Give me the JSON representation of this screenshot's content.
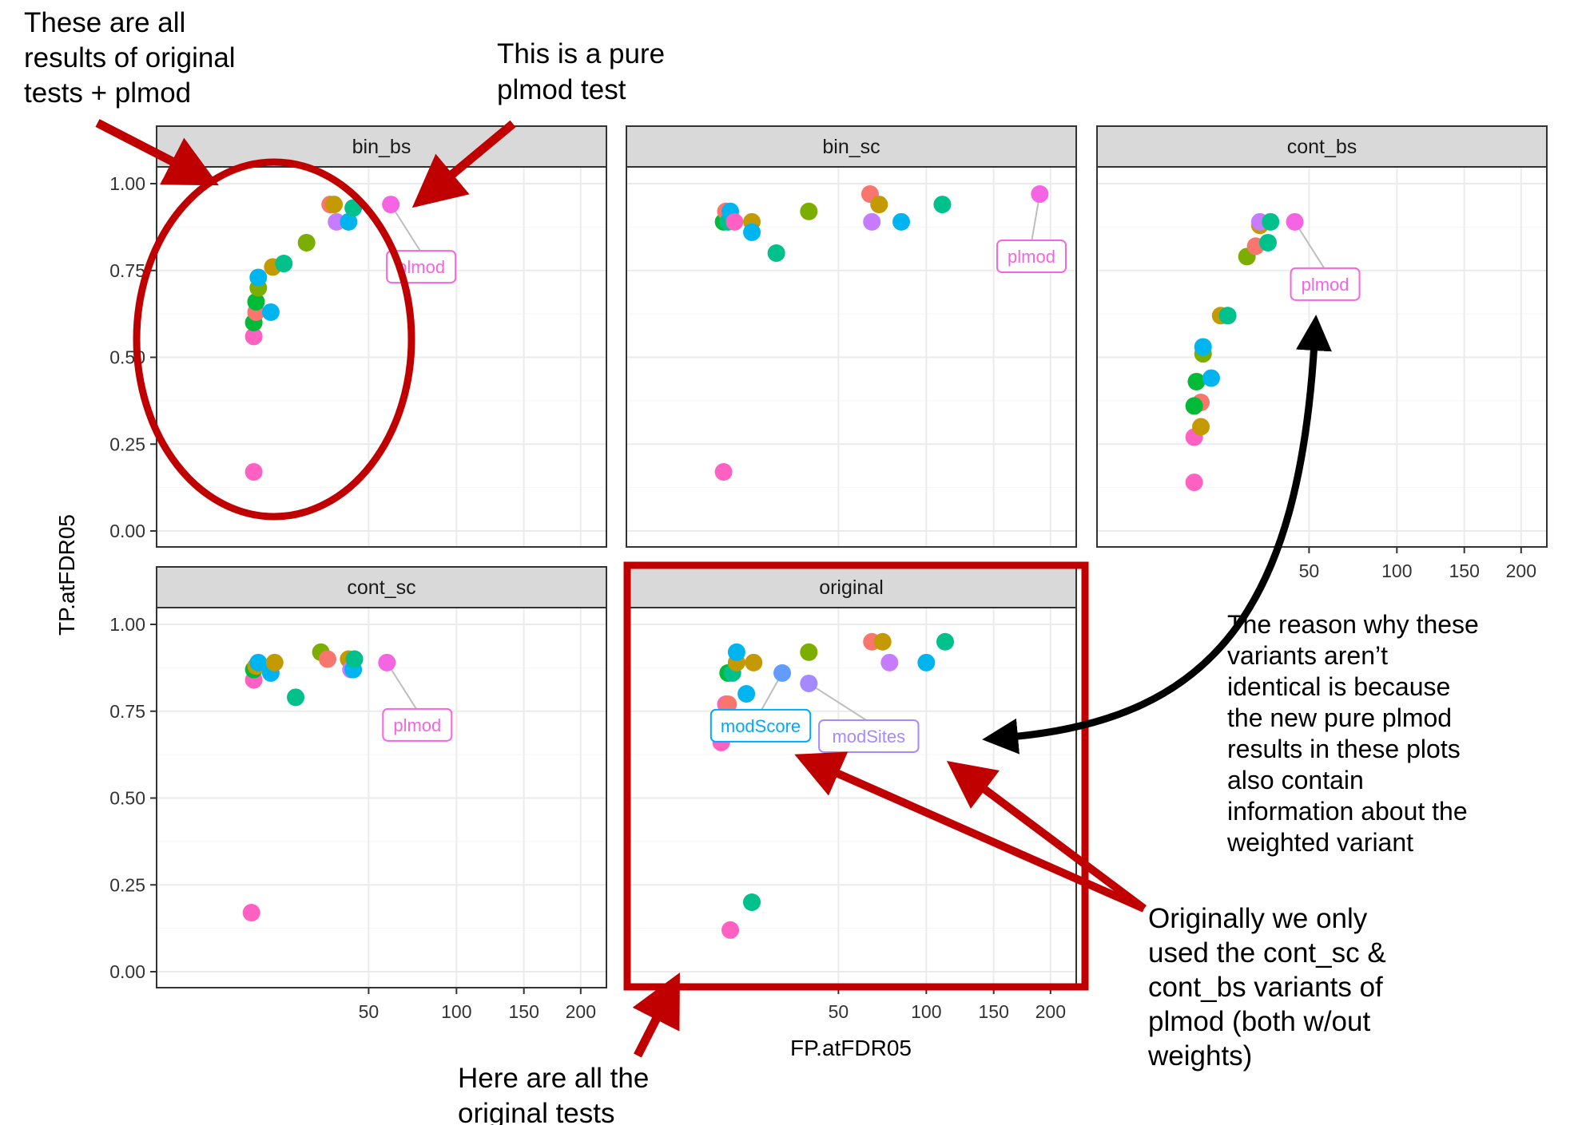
{
  "chart_data": {
    "type": "scatter",
    "xlabel": "FP.atFDR05",
    "ylabel": "TP.atFDR05",
    "x_ticks": [
      "50",
      "100",
      "150",
      "200"
    ],
    "y_ticks": [
      "0.00",
      "0.25",
      "0.50",
      "0.75",
      "1.00"
    ],
    "ylim": [
      0,
      1
    ],
    "colors": {
      "c_pink": "#ff61c3",
      "c_salmon": "#f8766d",
      "c_gold": "#c49a00",
      "c_olive": "#7cae00",
      "c_green": "#00ba38",
      "c_teal": "#00c08b",
      "c_cyan": "#00b4ef",
      "c_lightblue": "#619cff",
      "c_violet": "#c77cff",
      "c_lavender": "#a58aff",
      "c_pinklabel": "#f564e3",
      "c_bluelabel": "#00a9ff"
    },
    "panels": [
      {
        "name": "bin_bs",
        "points": [
          {
            "x": 10.5,
            "y": 0.17,
            "c": "c_pink"
          },
          {
            "x": 10.5,
            "y": 0.56,
            "c": "c_pink"
          },
          {
            "x": 10.5,
            "y": 0.6,
            "c": "c_green"
          },
          {
            "x": 11,
            "y": 0.63,
            "c": "c_salmon"
          },
          {
            "x": 11,
            "y": 0.66,
            "c": "c_green"
          },
          {
            "x": 11.5,
            "y": 0.7,
            "c": "c_olive"
          },
          {
            "x": 11.5,
            "y": 0.73,
            "c": "c_cyan"
          },
          {
            "x": 14.5,
            "y": 0.63,
            "c": "c_cyan"
          },
          {
            "x": 15,
            "y": 0.76,
            "c": "c_gold"
          },
          {
            "x": 18,
            "y": 0.77,
            "c": "c_teal"
          },
          {
            "x": 25,
            "y": 0.83,
            "c": "c_olive"
          },
          {
            "x": 33.5,
            "y": 0.94,
            "c": "c_salmon"
          },
          {
            "x": 35,
            "y": 0.94,
            "c": "c_gold"
          },
          {
            "x": 36,
            "y": 0.89,
            "c": "c_violet"
          },
          {
            "x": 41,
            "y": 0.89,
            "c": "c_cyan"
          },
          {
            "x": 43,
            "y": 0.93,
            "c": "c_teal"
          },
          {
            "x": 61,
            "y": 0.94,
            "c": "c_pinklabel"
          }
        ],
        "labels": [
          {
            "text": "plmod",
            "x": 61,
            "y": 0.94,
            "c": "c_pinklabel"
          }
        ]
      },
      {
        "name": "bin_sc",
        "points": [
          {
            "x": 10.5,
            "y": 0.17,
            "c": "c_pink"
          },
          {
            "x": 10.5,
            "y": 0.89,
            "c": "c_green"
          },
          {
            "x": 11,
            "y": 0.92,
            "c": "c_salmon"
          },
          {
            "x": 11.5,
            "y": 0.89,
            "c": "c_teal"
          },
          {
            "x": 12,
            "y": 0.92,
            "c": "c_cyan"
          },
          {
            "x": 13,
            "y": 0.89,
            "c": "c_pink"
          },
          {
            "x": 17.5,
            "y": 0.89,
            "c": "c_gold"
          },
          {
            "x": 17.5,
            "y": 0.86,
            "c": "c_cyan"
          },
          {
            "x": 25,
            "y": 0.8,
            "c": "c_teal"
          },
          {
            "x": 37,
            "y": 0.92,
            "c": "c_olive"
          },
          {
            "x": 66,
            "y": 0.97,
            "c": "c_salmon"
          },
          {
            "x": 71,
            "y": 0.94,
            "c": "c_gold"
          },
          {
            "x": 67,
            "y": 0.89,
            "c": "c_violet"
          },
          {
            "x": 84,
            "y": 0.89,
            "c": "c_cyan"
          },
          {
            "x": 111,
            "y": 0.94,
            "c": "c_teal"
          },
          {
            "x": 190,
            "y": 0.97,
            "c": "c_pinklabel"
          }
        ],
        "labels": [
          {
            "text": "plmod",
            "x": 190,
            "y": 0.97,
            "c": "c_pinklabel"
          }
        ]
      },
      {
        "name": "cont_bs",
        "points": [
          {
            "x": 10.5,
            "y": 0.14,
            "c": "c_pink"
          },
          {
            "x": 10.5,
            "y": 0.27,
            "c": "c_pink"
          },
          {
            "x": 12,
            "y": 0.3,
            "c": "c_gold"
          },
          {
            "x": 12,
            "y": 0.37,
            "c": "c_salmon"
          },
          {
            "x": 10.5,
            "y": 0.36,
            "c": "c_green"
          },
          {
            "x": 11,
            "y": 0.43,
            "c": "c_green"
          },
          {
            "x": 12.5,
            "y": 0.51,
            "c": "c_olive"
          },
          {
            "x": 12.5,
            "y": 0.53,
            "c": "c_cyan"
          },
          {
            "x": 14.5,
            "y": 0.44,
            "c": "c_cyan"
          },
          {
            "x": 17,
            "y": 0.62,
            "c": "c_gold"
          },
          {
            "x": 19,
            "y": 0.62,
            "c": "c_teal"
          },
          {
            "x": 25,
            "y": 0.79,
            "c": "c_olive"
          },
          {
            "x": 28,
            "y": 0.82,
            "c": "c_salmon"
          },
          {
            "x": 29.5,
            "y": 0.88,
            "c": "c_gold"
          },
          {
            "x": 29.5,
            "y": 0.89,
            "c": "c_violet"
          },
          {
            "x": 32.5,
            "y": 0.83,
            "c": "c_teal"
          },
          {
            "x": 33.5,
            "y": 0.89,
            "c": "c_teal"
          },
          {
            "x": 43.5,
            "y": 0.89,
            "c": "c_pinklabel"
          }
        ],
        "labels": [
          {
            "text": "plmod",
            "x": 43.5,
            "y": 0.89,
            "c": "c_pinklabel"
          }
        ]
      },
      {
        "name": "cont_sc",
        "points": [
          {
            "x": 10,
            "y": 0.17,
            "c": "c_pink"
          },
          {
            "x": 10.5,
            "y": 0.84,
            "c": "c_pink"
          },
          {
            "x": 10.5,
            "y": 0.87,
            "c": "c_green"
          },
          {
            "x": 11,
            "y": 0.88,
            "c": "c_gold"
          },
          {
            "x": 11.5,
            "y": 0.89,
            "c": "c_cyan"
          },
          {
            "x": 14.5,
            "y": 0.86,
            "c": "c_cyan"
          },
          {
            "x": 15.5,
            "y": 0.89,
            "c": "c_gold"
          },
          {
            "x": 21.5,
            "y": 0.79,
            "c": "c_teal"
          },
          {
            "x": 30,
            "y": 0.92,
            "c": "c_olive"
          },
          {
            "x": 32.5,
            "y": 0.9,
            "c": "c_salmon"
          },
          {
            "x": 41,
            "y": 0.9,
            "c": "c_gold"
          },
          {
            "x": 42,
            "y": 0.87,
            "c": "c_violet"
          },
          {
            "x": 43,
            "y": 0.87,
            "c": "c_cyan"
          },
          {
            "x": 43.5,
            "y": 0.9,
            "c": "c_teal"
          },
          {
            "x": 59,
            "y": 0.89,
            "c": "c_pinklabel"
          }
        ],
        "labels": [
          {
            "text": "plmod",
            "x": 59,
            "y": 0.89,
            "c": "c_pinklabel"
          }
        ]
      },
      {
        "name": "original",
        "points": [
          {
            "x": 10,
            "y": 0.66,
            "c": "c_pink"
          },
          {
            "x": 11,
            "y": 0.77,
            "c": "c_pink"
          },
          {
            "x": 11.5,
            "y": 0.77,
            "c": "c_salmon"
          },
          {
            "x": 11.5,
            "y": 0.86,
            "c": "c_green"
          },
          {
            "x": 12.5,
            "y": 0.86,
            "c": "c_teal"
          },
          {
            "x": 12,
            "y": 0.12,
            "c": "c_pink"
          },
          {
            "x": 13.5,
            "y": 0.89,
            "c": "c_gold"
          },
          {
            "x": 13.5,
            "y": 0.92,
            "c": "c_cyan"
          },
          {
            "x": 16,
            "y": 0.8,
            "c": "c_cyan"
          },
          {
            "x": 17.5,
            "y": 0.2,
            "c": "c_teal"
          },
          {
            "x": 18,
            "y": 0.89,
            "c": "c_gold"
          },
          {
            "x": 27,
            "y": 0.86,
            "c": "c_lightblue"
          },
          {
            "x": 37,
            "y": 0.83,
            "c": "c_lavender"
          },
          {
            "x": 37,
            "y": 0.92,
            "c": "c_olive"
          },
          {
            "x": 67,
            "y": 0.95,
            "c": "c_salmon"
          },
          {
            "x": 73,
            "y": 0.95,
            "c": "c_gold"
          },
          {
            "x": 77,
            "y": 0.89,
            "c": "c_violet"
          },
          {
            "x": 100,
            "y": 0.89,
            "c": "c_cyan"
          },
          {
            "x": 113,
            "y": 0.95,
            "c": "c_teal"
          }
        ],
        "labels": [
          {
            "text": "modScore",
            "x": 27,
            "y": 0.86,
            "c": "c_bluelabel"
          },
          {
            "text": "modSites",
            "x": 37,
            "y": 0.83,
            "c": "c_lavender"
          }
        ]
      }
    ],
    "annotations": [
      {
        "lines": [
          "These are all",
          "results of original",
          "tests + plmod"
        ]
      },
      {
        "lines": [
          "This is a pure",
          "plmod test"
        ]
      },
      {
        "lines": [
          "The reason why these",
          "variants aren’t",
          "identical is because",
          "the new pure plmod",
          "results in these plots",
          "also contain",
          "information about the",
          "weighted variant"
        ]
      },
      {
        "lines": [
          "Originally we only",
          "used the cont_sc &",
          "cont_bs variants of",
          "plmod (both w/out",
          "weights)"
        ]
      },
      {
        "lines": [
          "Here are all the",
          "original tests"
        ]
      }
    ]
  }
}
